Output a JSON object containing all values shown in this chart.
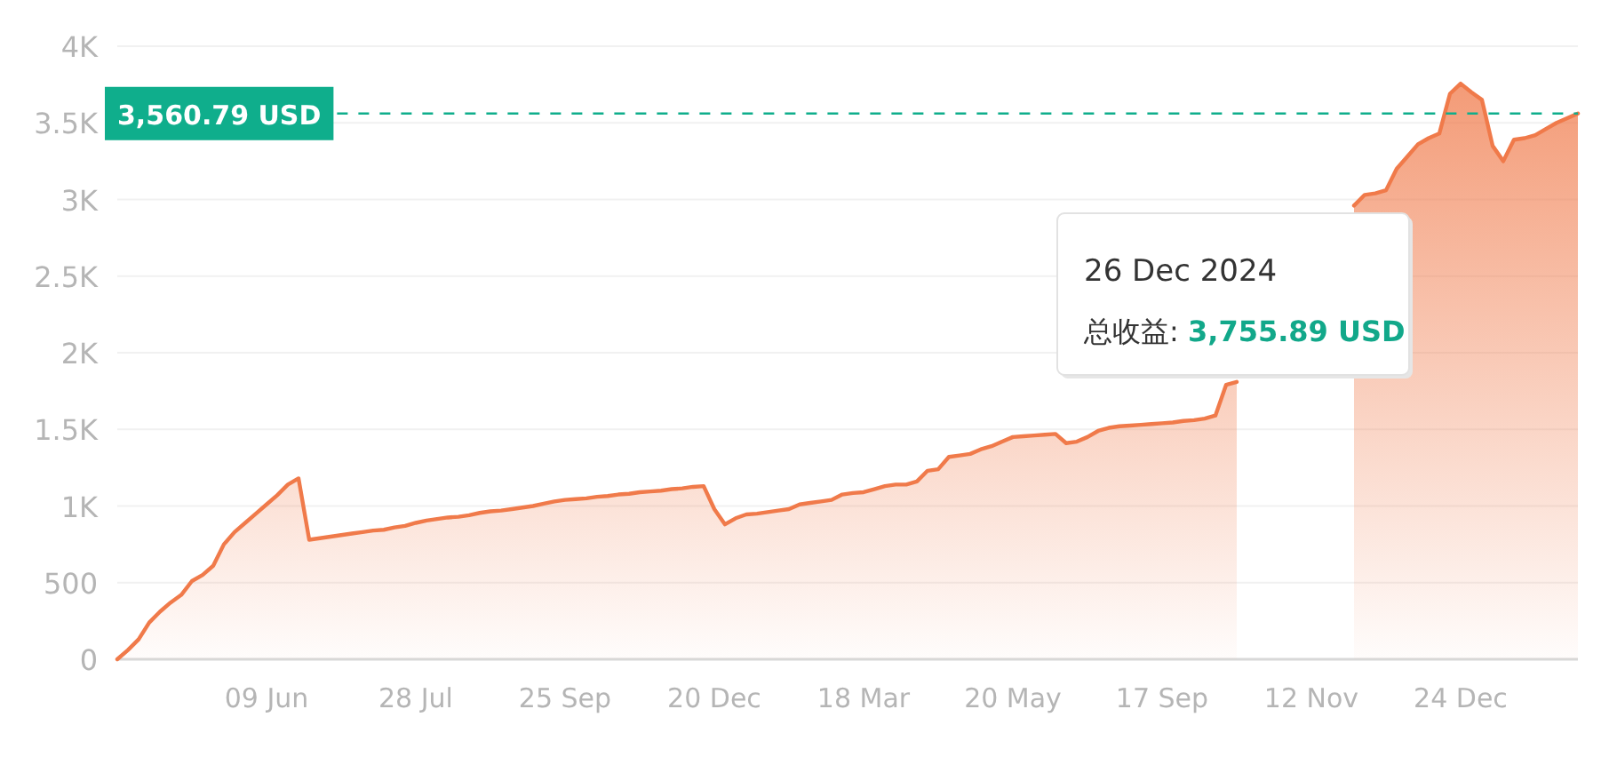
{
  "chart_data": {
    "type": "area",
    "categories": [
      null,
      null,
      null,
      null,
      null,
      null,
      null,
      null,
      null,
      null,
      null,
      null,
      null,
      null,
      "09 Jun",
      null,
      null,
      null,
      null,
      null,
      null,
      null,
      null,
      null,
      null,
      null,
      null,
      null,
      "28 Jul",
      null,
      null,
      null,
      null,
      null,
      null,
      null,
      null,
      null,
      null,
      null,
      null,
      null,
      "25 Sep",
      null,
      null,
      null,
      null,
      null,
      null,
      null,
      null,
      null,
      null,
      null,
      null,
      null,
      "20 Dec",
      null,
      null,
      null,
      null,
      null,
      null,
      null,
      null,
      null,
      null,
      null,
      null,
      null,
      "18 Mar",
      null,
      null,
      null,
      null,
      null,
      null,
      null,
      null,
      null,
      null,
      null,
      null,
      null,
      "20 May",
      null,
      null,
      null,
      null,
      null,
      null,
      null,
      null,
      null,
      null,
      null,
      null,
      null,
      "17 Sep",
      null,
      null,
      null,
      null,
      null,
      null,
      null,
      null,
      null,
      null,
      null,
      null,
      null,
      "12 Nov",
      null,
      null,
      null,
      null,
      null,
      null,
      null,
      null,
      null,
      null,
      null,
      null,
      null,
      "24 Dec",
      null,
      null,
      null,
      null,
      null,
      null,
      null,
      null,
      null,
      null,
      null
    ],
    "series": [
      {
        "color": "#f07a4a",
        "values": [
          0,
          60,
          130,
          240,
          310,
          370,
          420,
          510,
          550,
          610,
          750,
          830,
          890,
          950,
          1010,
          1070,
          1140,
          1180,
          780,
          790,
          800,
          810,
          820,
          830,
          840,
          845,
          860,
          870,
          890,
          905,
          915,
          925,
          930,
          940,
          955,
          965,
          970,
          980,
          990,
          1000,
          1015,
          1030,
          1040,
          1045,
          1050,
          1060,
          1065,
          1075,
          1080,
          1090,
          1095,
          1100,
          1110,
          1115,
          1125,
          1130,
          980,
          880,
          920,
          945,
          950,
          960,
          970,
          980,
          1010,
          1020,
          1030,
          1040,
          1075,
          1085,
          1090,
          1110,
          1130,
          1140,
          1140,
          1160,
          1230,
          1240,
          1320,
          1330,
          1340,
          1370,
          1390,
          1420,
          1450,
          1455,
          1460,
          1465,
          1470,
          1410,
          1420,
          1450,
          1490,
          1510,
          1520,
          1525,
          1530,
          1535,
          1540,
          1545,
          1555,
          1560,
          1570,
          1590,
          1790,
          1810,
          null,
          null,
          null,
          null,
          null,
          null,
          null,
          null,
          null,
          null,
          2960,
          3030,
          3040,
          3060,
          3200,
          3280,
          3360,
          3400,
          3430,
          3690,
          3755.89,
          3700,
          3650,
          3350,
          3250,
          3390,
          3400,
          3420,
          3460,
          3500,
          3530,
          3560.79
        ]
      }
    ],
    "ylim": [
      0,
      4000
    ],
    "yticks": [
      0,
      500,
      {
        "value": 1000,
        "label": "1K"
      },
      {
        "value": 1500,
        "label": "1.5K"
      },
      {
        "value": 2000,
        "label": "2K"
      },
      {
        "value": 2500,
        "label": "2.5K"
      },
      {
        "value": 3000,
        "label": "3K"
      },
      {
        "value": 3500,
        "label": "3.5K"
      },
      {
        "value": 4000,
        "label": "4K"
      }
    ],
    "grid": "y",
    "ref_lines": [
      {
        "axis": "y",
        "value": 3560.79,
        "label": "3,560.79 USD",
        "color": "#0fae8c",
        "line_style": "dashed"
      }
    ],
    "annotations": [
      "26 Dec 2024",
      "总收益: **3,755.89 USD**"
    ]
  }
}
